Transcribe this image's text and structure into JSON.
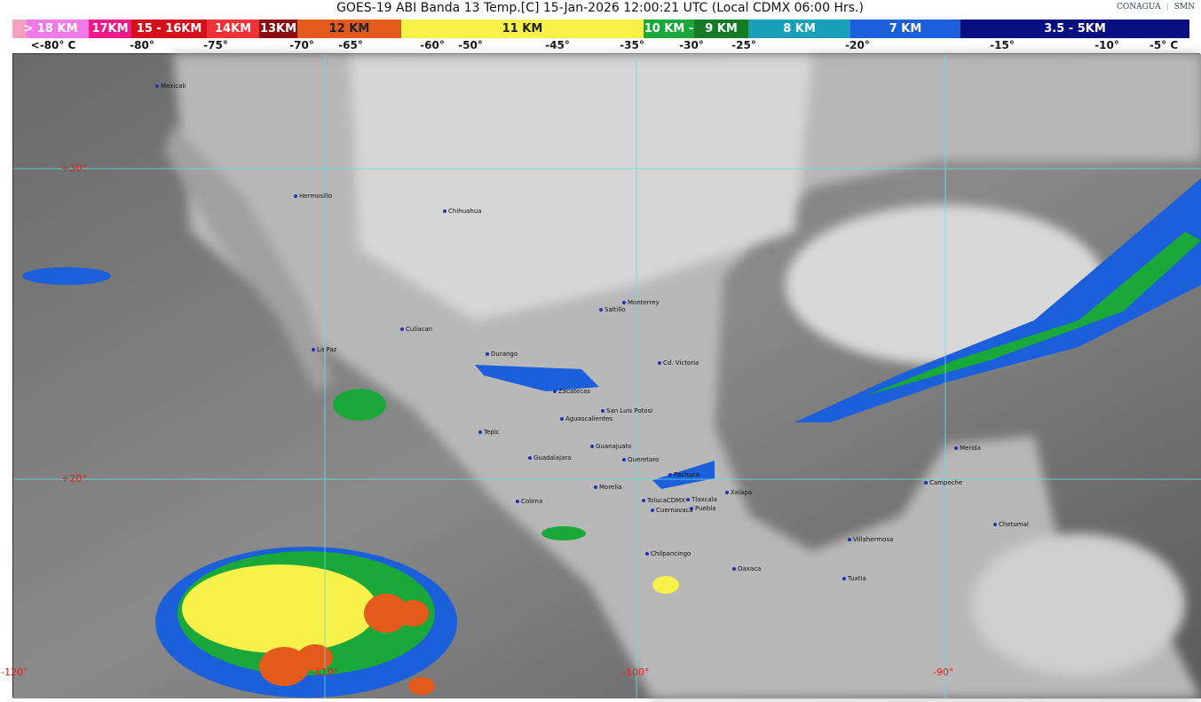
{
  "header": {
    "title": "GOES-19 ABI Banda 13 Temp.[C] 15-Jan-2026 12:00:21 UTC (Local CDMX  06:00 Hrs.)",
    "logos": [
      "CONAGUA",
      "SMN"
    ]
  },
  "legend": {
    "segments": [
      {
        "label": "> 18 KM",
        "color": "#f07ae8"
      },
      {
        "label": "17KM",
        "color": "#ee1a8a"
      },
      {
        "label": "15 - 16KM",
        "color": "#d4101c"
      },
      {
        "label": "14KM",
        "color": "#ee3338"
      },
      {
        "label": "13KM",
        "color": "#8b0d12"
      },
      {
        "label": "12 KM",
        "color": "#e35a1c"
      },
      {
        "label": "11 KM",
        "color": "#f7f14a"
      },
      {
        "label": "10 KM -",
        "color": "#1aa83a"
      },
      {
        "label": "9 KM",
        "color": "#157a26"
      },
      {
        "label": "8 KM",
        "color": "#17a0b8"
      },
      {
        "label": "7 KM",
        "color": "#1b5fdb"
      },
      {
        "label": "3.5 - 5KM",
        "color": "#0a0f80"
      }
    ],
    "temps": [
      "<-80° C",
      "-80°",
      "-75°",
      "-70°",
      "-65°",
      "-60°",
      "-50°",
      "-45°",
      "-35°",
      "-30°",
      "-25°",
      "-20°",
      "-15°",
      "-10°",
      "-5° C"
    ]
  },
  "map": {
    "latitudes": [
      "+30°",
      "+20°"
    ],
    "longitudes": [
      "-120°",
      "-110°",
      "-100°",
      "-90°"
    ],
    "cities": [
      "Mexicali",
      "Hermosillo",
      "Chihuahua",
      "La Paz",
      "Culiacan",
      "Saltillo",
      "Monterrey",
      "Durango",
      "Cd. Victoria",
      "Zacatecas",
      "San Luis Potosi",
      "Aguascalientes",
      "Tepic",
      "Guanajuato",
      "Guadalajara",
      "Queretaro",
      "Pachuca",
      "Morelia",
      "Colima",
      "TolucaCDMX",
      "Tlaxcala",
      "Xalapa",
      "Puebla",
      "Cuernavaca",
      "Chilpancingo",
      "Oaxaca",
      "Villahermosa",
      "Tuxtla",
      "Merida",
      "Campeche",
      "Chetumal"
    ]
  }
}
